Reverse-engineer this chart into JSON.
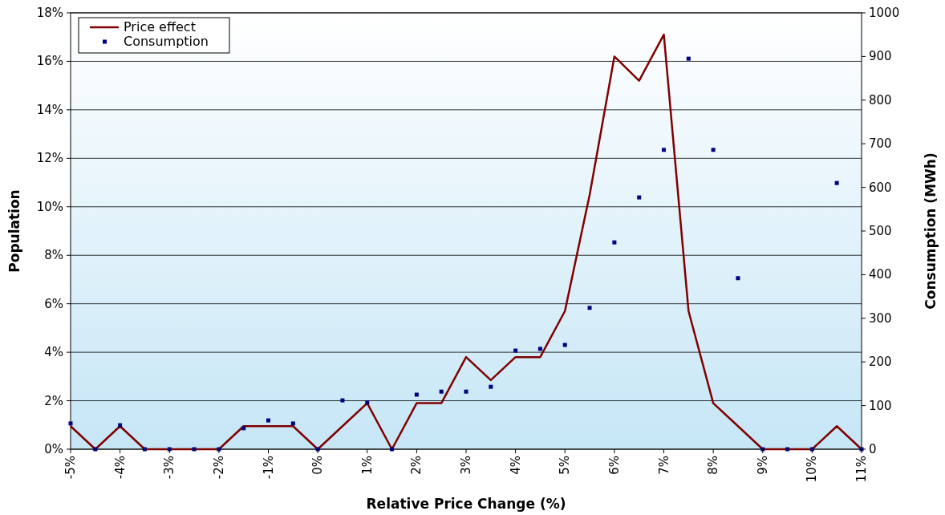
{
  "chart_data": {
    "type": "line",
    "xlabel": "Relative Price Change (%)",
    "ylabel": "Population",
    "y2label": "Consumption (MWh)",
    "x": [
      -5,
      -4.5,
      -4,
      -3.5,
      -3,
      -2.5,
      -2,
      -1.5,
      -1,
      -0.5,
      0,
      0.5,
      1,
      1.5,
      2,
      2.5,
      3,
      3.5,
      4,
      4.5,
      5,
      5.5,
      6,
      6.5,
      7,
      7.5,
      8,
      8.5,
      9,
      9.5,
      10,
      10.5,
      11
    ],
    "series": [
      {
        "name": "Price effect",
        "color": "#800000",
        "marker": "none",
        "values": [
          0.95,
          0,
          0.95,
          0,
          0,
          0,
          0,
          0.95,
          0.95,
          0.95,
          0,
          0.95,
          1.9,
          0,
          1.9,
          1.9,
          3.8,
          2.85,
          3.8,
          3.8,
          5.7,
          10.5,
          16.2,
          15.2,
          17.1,
          5.7,
          1.9,
          0.95,
          0,
          0,
          0,
          0.95,
          0
        ]
      },
      {
        "name": "Consumption",
        "type": "scatter",
        "axis": "y2",
        "color": "#000080",
        "marker": "square",
        "values": [
          59,
          0,
          55,
          0,
          0,
          0,
          0,
          48,
          66,
          59,
          0,
          112,
          107,
          0,
          125,
          132,
          132,
          143,
          226,
          230,
          239,
          324,
          474,
          577,
          686,
          895,
          686,
          392,
          0,
          0,
          0,
          610,
          0
        ]
      }
    ],
    "xlim": [
      -5,
      11
    ],
    "xticks": [
      {
        "value": -5,
        "label": "-5%"
      },
      {
        "value": -4,
        "label": "-4%"
      },
      {
        "value": -3,
        "label": "-3%"
      },
      {
        "value": -2,
        "label": "-2%"
      },
      {
        "value": -1,
        "label": "-1%"
      },
      {
        "value": 0,
        "label": "0%"
      },
      {
        "value": 1,
        "label": "1%"
      },
      {
        "value": 2,
        "label": "2%"
      },
      {
        "value": 3,
        "label": "3%"
      },
      {
        "value": 4,
        "label": "4%"
      },
      {
        "value": 5,
        "label": "5%"
      },
      {
        "value": 6,
        "label": "6%"
      },
      {
        "value": 7,
        "label": "7%"
      },
      {
        "value": 8,
        "label": "8%"
      },
      {
        "value": 9,
        "label": "9%"
      },
      {
        "value": 10,
        "label": "10%"
      },
      {
        "value": 11,
        "label": "11%"
      }
    ],
    "ylim": [
      0,
      18
    ],
    "yticks": [
      {
        "value": 0,
        "label": "0%"
      },
      {
        "value": 2,
        "label": "2%"
      },
      {
        "value": 4,
        "label": "4%"
      },
      {
        "value": 6,
        "label": "6%"
      },
      {
        "value": 8,
        "label": "8%"
      },
      {
        "value": 10,
        "label": "10%"
      },
      {
        "value": 12,
        "label": "12%"
      },
      {
        "value": 14,
        "label": "14%"
      },
      {
        "value": 16,
        "label": "16%"
      },
      {
        "value": 18,
        "label": "18%"
      }
    ],
    "y2lim": [
      0,
      1000
    ],
    "y2ticks": [
      0,
      100,
      200,
      300,
      400,
      500,
      600,
      700,
      800,
      900,
      1000
    ],
    "grid": "y",
    "legend": "top left"
  }
}
